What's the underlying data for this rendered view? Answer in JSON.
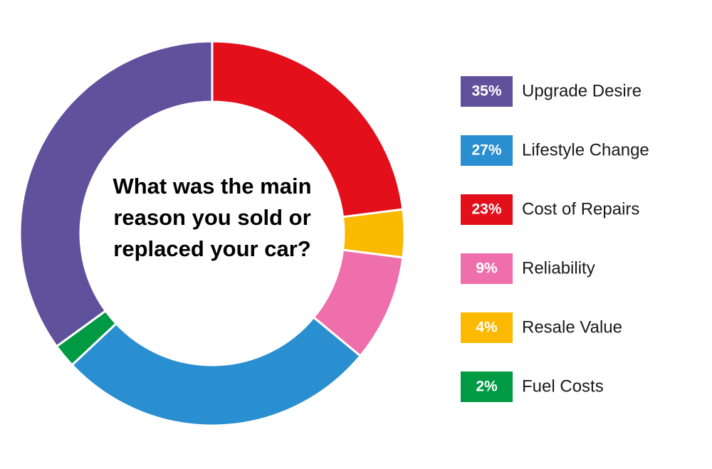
{
  "chart_data": {
    "type": "pie",
    "title": "What was the main reason you sold or replaced your car?",
    "categories": [
      "Cost of Repairs",
      "Resale Value",
      "Reliability",
      "Lifestyle Change",
      "Fuel Costs",
      "Upgrade Desire"
    ],
    "values": [
      23,
      4,
      9,
      27,
      2,
      35
    ],
    "value_labels": [
      "23%",
      "4%",
      "9%",
      "27%",
      "2%",
      "35%"
    ],
    "colors": [
      "#e3101b",
      "#fbb900",
      "#ee6fab",
      "#2a8fd0",
      "#009a44",
      "#5f519b"
    ],
    "legend": "right"
  }
}
